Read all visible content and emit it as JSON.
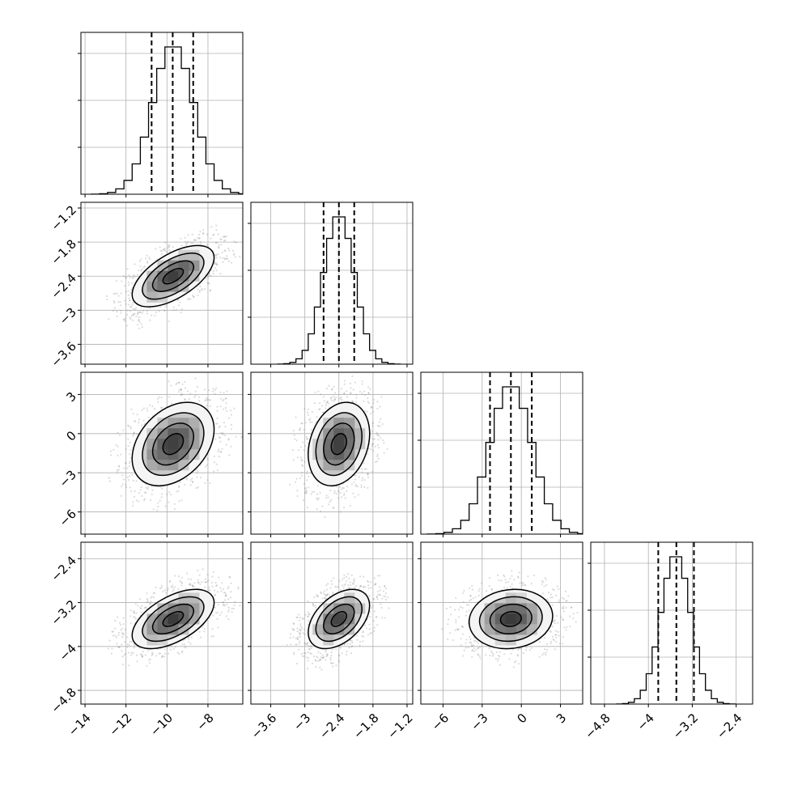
{
  "chart_data": {
    "type": "corner",
    "parameters": [
      {
        "ticks": [
          -14,
          -12,
          -10,
          -8
        ],
        "range": [
          -14.2,
          -6.3
        ],
        "mean": -9.7,
        "sd": 1.0,
        "quantiles": [
          -10.75,
          -9.72,
          -8.72
        ],
        "show_ticks": true
      },
      {
        "ticks": [
          -3.6,
          -3.0,
          -2.4,
          -1.8,
          -1.2
        ],
        "range": [
          -3.95,
          -1.1
        ],
        "mean": -2.4,
        "sd": 0.27,
        "quantiles": [
          -2.67,
          -2.4,
          -2.13
        ],
        "show_ticks": true
      },
      {
        "ticks": [
          -6,
          -3,
          0,
          3
        ],
        "range": [
          -7.7,
          4.7
        ],
        "mean": -0.8,
        "sd": 1.6,
        "quantiles": [
          -2.4,
          -0.8,
          0.8
        ],
        "show_ticks": true
      },
      {
        "ticks": [
          -4.8,
          -4.0,
          -3.2,
          -2.4
        ],
        "range": [
          -5.05,
          -2.1
        ],
        "mean": -3.5,
        "sd": 0.27,
        "quantiles": [
          -3.82,
          -3.49,
          -3.17
        ],
        "show_ticks": true
      }
    ],
    "correlations": [
      [
        1,
        0.6,
        0.35,
        0.55
      ],
      [
        0.6,
        1,
        0.25,
        0.45
      ],
      [
        0.35,
        0.25,
        1,
        0.1
      ],
      [
        0.55,
        0.45,
        0.1,
        1
      ]
    ],
    "histogram_bins": 20,
    "contour_levels": [
      0.5,
      1.0,
      1.5,
      2.0
    ],
    "grid": true
  }
}
